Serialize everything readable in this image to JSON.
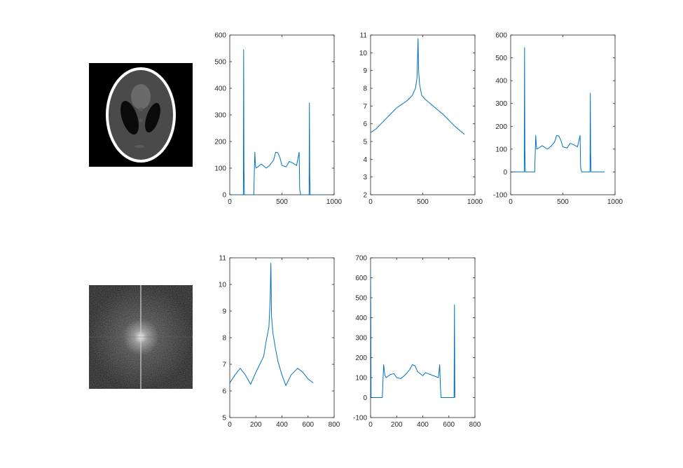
{
  "figure": {
    "background": "#ffffff",
    "series_color": "#0072bd"
  },
  "images": [
    {
      "name": "phantom-image",
      "description_key": "shepp-logan"
    },
    {
      "name": "spectrum-image",
      "description_key": "fft-magnitude"
    }
  ],
  "chart_data": [
    {
      "id": "plot-1",
      "type": "line",
      "xlim": [
        0,
        1000
      ],
      "ylim": [
        0,
        600
      ],
      "xticks": [
        0,
        500,
        1000
      ],
      "yticks": [
        0,
        100,
        200,
        300,
        400,
        500,
        600
      ],
      "xtick_labels": [
        "0",
        "500",
        "1000"
      ],
      "ytick_labels": [
        "0",
        "100",
        "200",
        "300",
        "400",
        "500",
        "600"
      ],
      "series": [
        {
          "x": [
            0,
            130,
            133,
            136,
            140,
            230,
            240,
            245,
            250,
            270,
            300,
            320,
            350,
            380,
            420,
            440,
            460,
            480,
            500,
            540,
            570,
            600,
            640,
            665,
            670,
            680,
            760,
            763,
            766,
            770,
            800,
            900
          ],
          "y": [
            0,
            0,
            545,
            100,
            0,
            0,
            160,
            120,
            100,
            105,
            115,
            110,
            100,
            110,
            130,
            160,
            158,
            140,
            110,
            105,
            125,
            120,
            110,
            160,
            20,
            0,
            0,
            345,
            80,
            0,
            0,
            0
          ]
        }
      ]
    },
    {
      "id": "plot-2",
      "type": "line",
      "xlim": [
        0,
        1000
      ],
      "ylim": [
        2,
        11
      ],
      "xticks": [
        0,
        500,
        1000
      ],
      "yticks": [
        2,
        3,
        4,
        5,
        6,
        7,
        8,
        9,
        10,
        11
      ],
      "xtick_labels": [
        "0",
        "500",
        "1000"
      ],
      "ytick_labels": [
        "2",
        "3",
        "4",
        "5",
        "6",
        "7",
        "8",
        "9",
        "10",
        "11"
      ],
      "series": [
        {
          "x": [
            0,
            50,
            100,
            150,
            200,
            250,
            300,
            350,
            400,
            430,
            445,
            455,
            460,
            470,
            490,
            520,
            600,
            700,
            800,
            900
          ],
          "y": [
            5.5,
            5.7,
            6.0,
            6.3,
            6.6,
            6.9,
            7.1,
            7.3,
            7.6,
            8.0,
            8.6,
            10.8,
            9.0,
            8.2,
            7.6,
            7.4,
            7.0,
            6.5,
            5.9,
            5.4
          ]
        }
      ]
    },
    {
      "id": "plot-3",
      "type": "line",
      "xlim": [
        0,
        1000
      ],
      "ylim": [
        -100,
        600
      ],
      "xticks": [
        0,
        500,
        1000
      ],
      "yticks": [
        -100,
        0,
        100,
        200,
        300,
        400,
        500,
        600
      ],
      "xtick_labels": [
        "0",
        "500",
        "1000"
      ],
      "ytick_labels": [
        "-100",
        "0",
        "100",
        "200",
        "300",
        "400",
        "500",
        "600"
      ],
      "series": [
        {
          "x": [
            0,
            130,
            133,
            136,
            140,
            230,
            240,
            245,
            250,
            270,
            300,
            320,
            350,
            380,
            420,
            440,
            460,
            480,
            500,
            540,
            570,
            600,
            640,
            665,
            670,
            680,
            760,
            763,
            766,
            770,
            800,
            900
          ],
          "y": [
            0,
            0,
            545,
            100,
            0,
            0,
            160,
            120,
            100,
            105,
            115,
            110,
            100,
            110,
            130,
            160,
            158,
            140,
            110,
            105,
            125,
            120,
            110,
            160,
            20,
            0,
            0,
            345,
            80,
            0,
            0,
            0
          ]
        }
      ]
    },
    {
      "id": "plot-4",
      "type": "line",
      "xlim": [
        0,
        800
      ],
      "ylim": [
        5,
        11
      ],
      "xticks": [
        0,
        200,
        400,
        600,
        800
      ],
      "yticks": [
        5,
        6,
        7,
        8,
        9,
        10,
        11
      ],
      "xtick_labels": [
        "0",
        "200",
        "400",
        "600",
        "800"
      ],
      "ytick_labels": [
        "5",
        "6",
        "7",
        "8",
        "9",
        "10",
        "11"
      ],
      "series": [
        {
          "x": [
            0,
            40,
            80,
            120,
            160,
            200,
            230,
            260,
            280,
            300,
            310,
            315,
            320,
            330,
            350,
            370,
            400,
            430,
            470,
            520,
            560,
            600,
            640
          ],
          "y": [
            6.3,
            6.6,
            6.85,
            6.6,
            6.25,
            6.7,
            7.0,
            7.3,
            7.9,
            8.4,
            9.5,
            10.8,
            8.8,
            8.2,
            7.6,
            7.1,
            6.6,
            6.2,
            6.6,
            6.85,
            6.7,
            6.45,
            6.3
          ]
        }
      ]
    },
    {
      "id": "plot-5",
      "type": "line",
      "xlim": [
        0,
        800
      ],
      "ylim": [
        -100,
        700
      ],
      "xticks": [
        0,
        200,
        400,
        600,
        800
      ],
      "yticks": [
        -100,
        0,
        100,
        200,
        300,
        400,
        500,
        600,
        700
      ],
      "xtick_labels": [
        "0",
        "200",
        "400",
        "600",
        "800"
      ],
      "ytick_labels": [
        "-100",
        "0",
        "100",
        "200",
        "300",
        "400",
        "500",
        "600",
        "700"
      ],
      "series": [
        {
          "x": [
            0,
            2,
            4,
            6,
            90,
            100,
            110,
            120,
            150,
            180,
            200,
            230,
            260,
            300,
            320,
            340,
            360,
            400,
            420,
            440,
            480,
            520,
            530,
            535,
            540,
            640,
            643,
            646
          ],
          "y": [
            640,
            400,
            0,
            0,
            0,
            165,
            110,
            100,
            115,
            120,
            100,
            95,
            110,
            140,
            165,
            160,
            130,
            110,
            125,
            120,
            110,
            100,
            165,
            60,
            0,
            0,
            465,
            0
          ]
        }
      ]
    }
  ]
}
